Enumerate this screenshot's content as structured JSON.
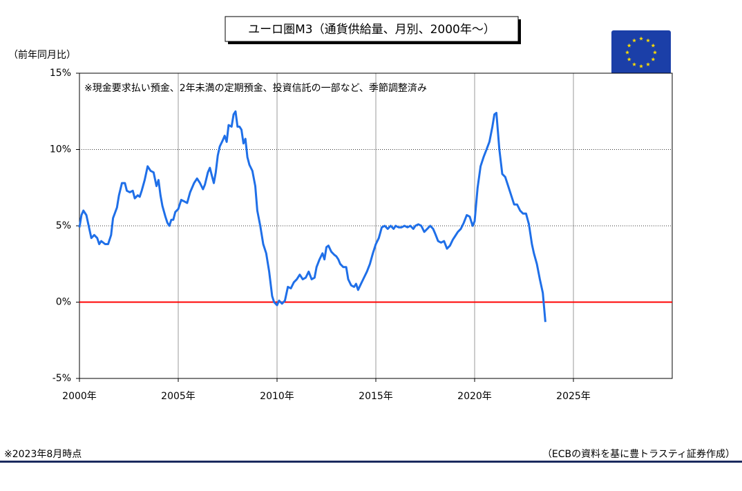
{
  "chart_data": {
    "type": "line",
    "title": "ユーロ圏M3（通貨供給量、月別、2000年〜）",
    "ylabel": "（前年同月比）",
    "annotation": "※現金要求払い預金、2年未満の定期預金、投資信託の一部など、季節調整済み",
    "footnote": "※2023年8月時点",
    "source": "（ECBの資料を基に豊トラスティ証券作成）",
    "color": "#1f6fe8",
    "reference_line": {
      "value": 0,
      "color": "#ff0000"
    },
    "grid": true,
    "xlim": [
      2000,
      2030
    ],
    "xticks": [
      {
        "value": 2000,
        "label": "2000年"
      },
      {
        "value": 2005,
        "label": "2005年"
      },
      {
        "value": 2010,
        "label": "2010年"
      },
      {
        "value": 2015,
        "label": "2015年"
      },
      {
        "value": 2020,
        "label": "2020年"
      },
      {
        "value": 2025,
        "label": "2025年"
      }
    ],
    "ylim": [
      -5,
      15
    ],
    "yticks": [
      {
        "value": -5,
        "label": "-5%"
      },
      {
        "value": 0,
        "label": "0%"
      },
      {
        "value": 5,
        "label": "5%"
      },
      {
        "value": 10,
        "label": "10%"
      },
      {
        "value": 15,
        "label": "15%"
      }
    ],
    "x": [
      2000.0,
      2000.1,
      2000.2,
      2000.35,
      2000.5,
      2000.6,
      2000.75,
      2000.9,
      2001.0,
      2001.1,
      2001.3,
      2001.45,
      2001.6,
      2001.7,
      2001.9,
      2002.0,
      2002.15,
      2002.3,
      2002.4,
      2002.55,
      2002.7,
      2002.8,
      2002.95,
      2003.05,
      2003.15,
      2003.3,
      2003.45,
      2003.6,
      2003.75,
      2003.9,
      2004.0,
      2004.1,
      2004.2,
      2004.35,
      2004.45,
      2004.55,
      2004.65,
      2004.75,
      2004.85,
      2005.0,
      2005.15,
      2005.3,
      2005.45,
      2005.6,
      2005.8,
      2005.95,
      2006.1,
      2006.25,
      2006.35,
      2006.5,
      2006.6,
      2006.7,
      2006.8,
      2006.9,
      2007.0,
      2007.1,
      2007.25,
      2007.35,
      2007.45,
      2007.55,
      2007.7,
      2007.8,
      2007.9,
      2008.0,
      2008.1,
      2008.2,
      2008.3,
      2008.4,
      2008.5,
      2008.6,
      2008.75,
      2008.9,
      2009.0,
      2009.15,
      2009.3,
      2009.45,
      2009.6,
      2009.75,
      2009.85,
      2010.0,
      2010.1,
      2010.25,
      2010.4,
      2010.55,
      2010.7,
      2010.85,
      2011.0,
      2011.15,
      2011.3,
      2011.45,
      2011.6,
      2011.75,
      2011.9,
      2012.0,
      2012.15,
      2012.3,
      2012.4,
      2012.5,
      2012.6,
      2012.75,
      2012.9,
      2013.0,
      2013.1,
      2013.2,
      2013.35,
      2013.5,
      2013.6,
      2013.75,
      2013.9,
      2014.0,
      2014.1,
      2014.25,
      2014.4,
      2014.55,
      2014.7,
      2014.85,
      2015.0,
      2015.15,
      2015.3,
      2015.45,
      2015.6,
      2015.75,
      2015.9,
      2016.0,
      2016.15,
      2016.3,
      2016.45,
      2016.6,
      2016.75,
      2016.9,
      2017.0,
      2017.15,
      2017.3,
      2017.45,
      2017.6,
      2017.75,
      2017.9,
      2018.0,
      2018.15,
      2018.3,
      2018.45,
      2018.6,
      2018.75,
      2018.9,
      2019.0,
      2019.15,
      2019.3,
      2019.45,
      2019.6,
      2019.75,
      2019.9,
      2020.0,
      2020.15,
      2020.3,
      2020.45,
      2020.6,
      2020.75,
      2020.9,
      2021.0,
      2021.1,
      2021.25,
      2021.4,
      2021.55,
      2021.7,
      2021.85,
      2022.0,
      2022.15,
      2022.3,
      2022.45,
      2022.6,
      2022.75,
      2022.9,
      2023.0,
      2023.15,
      2023.3,
      2023.45,
      2023.58
    ],
    "values": [
      4.9,
      5.7,
      6.0,
      5.7,
      4.8,
      4.2,
      4.4,
      4.2,
      3.8,
      4.0,
      3.8,
      3.8,
      4.4,
      5.5,
      6.2,
      7.0,
      7.8,
      7.8,
      7.3,
      7.2,
      7.3,
      6.8,
      7.0,
      6.9,
      7.3,
      8.0,
      8.9,
      8.6,
      8.5,
      7.6,
      8.0,
      7.0,
      6.3,
      5.6,
      5.2,
      5.0,
      5.4,
      5.4,
      5.9,
      6.1,
      6.7,
      6.6,
      6.5,
      7.2,
      7.8,
      8.1,
      7.8,
      7.4,
      7.7,
      8.5,
      8.8,
      8.3,
      7.8,
      8.5,
      9.6,
      10.2,
      10.6,
      10.9,
      10.5,
      11.6,
      11.5,
      12.3,
      12.5,
      11.5,
      11.5,
      11.3,
      10.4,
      10.7,
      9.5,
      9.0,
      8.6,
      7.6,
      6.0,
      5.0,
      3.8,
      3.2,
      2.0,
      0.4,
      0.0,
      -0.2,
      0.1,
      -0.1,
      0.1,
      1.0,
      0.9,
      1.3,
      1.5,
      1.8,
      1.5,
      1.6,
      2.0,
      1.5,
      1.6,
      2.3,
      2.8,
      3.2,
      2.8,
      3.6,
      3.7,
      3.3,
      3.1,
      3.0,
      2.8,
      2.5,
      2.3,
      2.3,
      1.5,
      1.1,
      1.0,
      1.2,
      0.8,
      1.2,
      1.6,
      2.0,
      2.5,
      3.2,
      3.8,
      4.2,
      4.9,
      5.0,
      4.8,
      5.0,
      4.8,
      5.0,
      4.9,
      4.9,
      5.0,
      4.9,
      5.0,
      4.8,
      5.0,
      5.1,
      5.0,
      4.6,
      4.8,
      5.0,
      4.8,
      4.5,
      4.0,
      3.9,
      4.0,
      3.5,
      3.7,
      4.1,
      4.3,
      4.6,
      4.8,
      5.2,
      5.7,
      5.6,
      5.0,
      5.3,
      7.5,
      8.9,
      9.5,
      10.0,
      10.5,
      11.5,
      12.3,
      12.4,
      10.0,
      8.4,
      8.2,
      7.6,
      7.0,
      6.4,
      6.4,
      6.0,
      5.8,
      5.8,
      5.1,
      3.8,
      3.2,
      2.5,
      1.5,
      0.6,
      -1.3
    ]
  }
}
